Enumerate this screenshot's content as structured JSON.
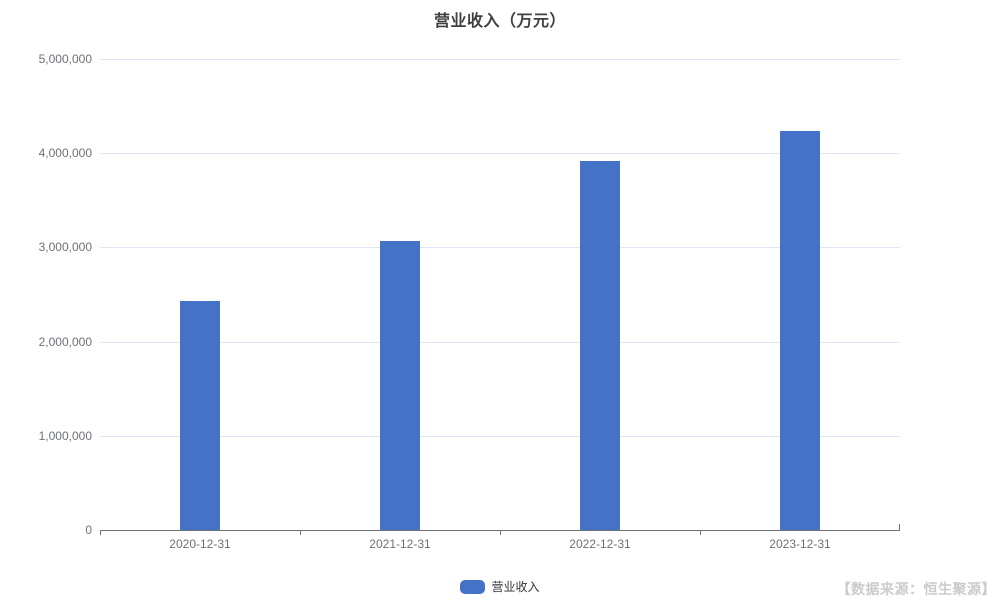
{
  "header": {
    "title": "营业收入（万元）"
  },
  "legend": {
    "items": [
      {
        "label": "营业收入",
        "color": "#4472C7"
      }
    ]
  },
  "footer": {
    "source": "【数据来源：恒生聚源】"
  },
  "colors": {
    "bar": "#4472C7",
    "gridline": "#E0E5F1",
    "axis": "#6E7079",
    "tick_label": "#6E7079",
    "title": "#404040",
    "legend_text": "#333333",
    "source_text": "#CBCBCB",
    "background": "#FFFFFF"
  },
  "chart_data": {
    "type": "bar",
    "title": "营业收入（万元）",
    "categories": [
      "2020-12-31",
      "2021-12-31",
      "2022-12-31",
      "2023-12-31"
    ],
    "series": [
      {
        "name": "营业收入",
        "color": "#4472C7",
        "values": [
          2430000,
          3070000,
          3920000,
          4240000
        ]
      }
    ],
    "xlabel": "",
    "ylabel": "",
    "ylim": [
      0,
      5000000
    ],
    "ytick_interval": 1000000,
    "ytick_labels": [
      "0",
      "1,000,000",
      "2,000,000",
      "3,000,000",
      "4,000,000",
      "5,000,000"
    ],
    "grid": true,
    "legend_position": "bottom"
  }
}
